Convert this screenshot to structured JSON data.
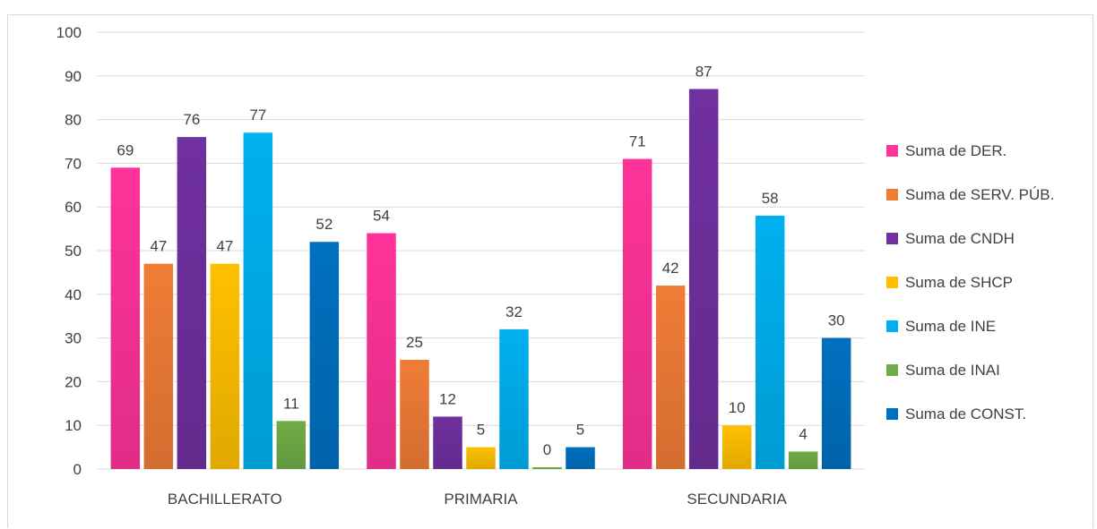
{
  "chart_data": {
    "type": "bar",
    "categories": [
      "BACHILLERATO",
      "PRIMARIA",
      "SECUNDARIA"
    ],
    "ylim": [
      0,
      100
    ],
    "yticks": [
      0,
      10,
      20,
      30,
      40,
      50,
      60,
      70,
      80,
      90,
      100
    ],
    "grid": true,
    "legend_position": "right",
    "series": [
      {
        "name": "Suma de DER.",
        "color": "#ff3399",
        "values": [
          69,
          54,
          71
        ],
        "labels": [
          "69",
          "54",
          "71"
        ]
      },
      {
        "name": "Suma de SERV. PÚB.",
        "color": "#f07c36",
        "values": [
          47,
          25,
          42
        ],
        "labels": [
          "47",
          "25",
          "42"
        ]
      },
      {
        "name": "Suma de CNDH",
        "color": "#7030a0",
        "values": [
          76,
          12,
          87
        ],
        "labels": [
          "76",
          "12",
          "87"
        ]
      },
      {
        "name": "Suma de SHCP",
        "color": "#ffc000",
        "values": [
          47,
          5,
          10
        ],
        "labels": [
          "47",
          "5",
          "10"
        ]
      },
      {
        "name": "Suma de INE",
        "color": "#00b0f0",
        "values": [
          77,
          32,
          58
        ],
        "labels": [
          "77",
          "32",
          "58"
        ]
      },
      {
        "name": "Suma de INAI",
        "color": "#70ad47",
        "values": [
          11,
          0.4,
          4
        ],
        "labels": [
          "11",
          "0",
          "4"
        ]
      },
      {
        "name": "Suma de CONST.",
        "color": "#0070c0",
        "values": [
          52,
          5,
          30
        ],
        "labels": [
          "52",
          "5",
          "30"
        ]
      }
    ]
  }
}
